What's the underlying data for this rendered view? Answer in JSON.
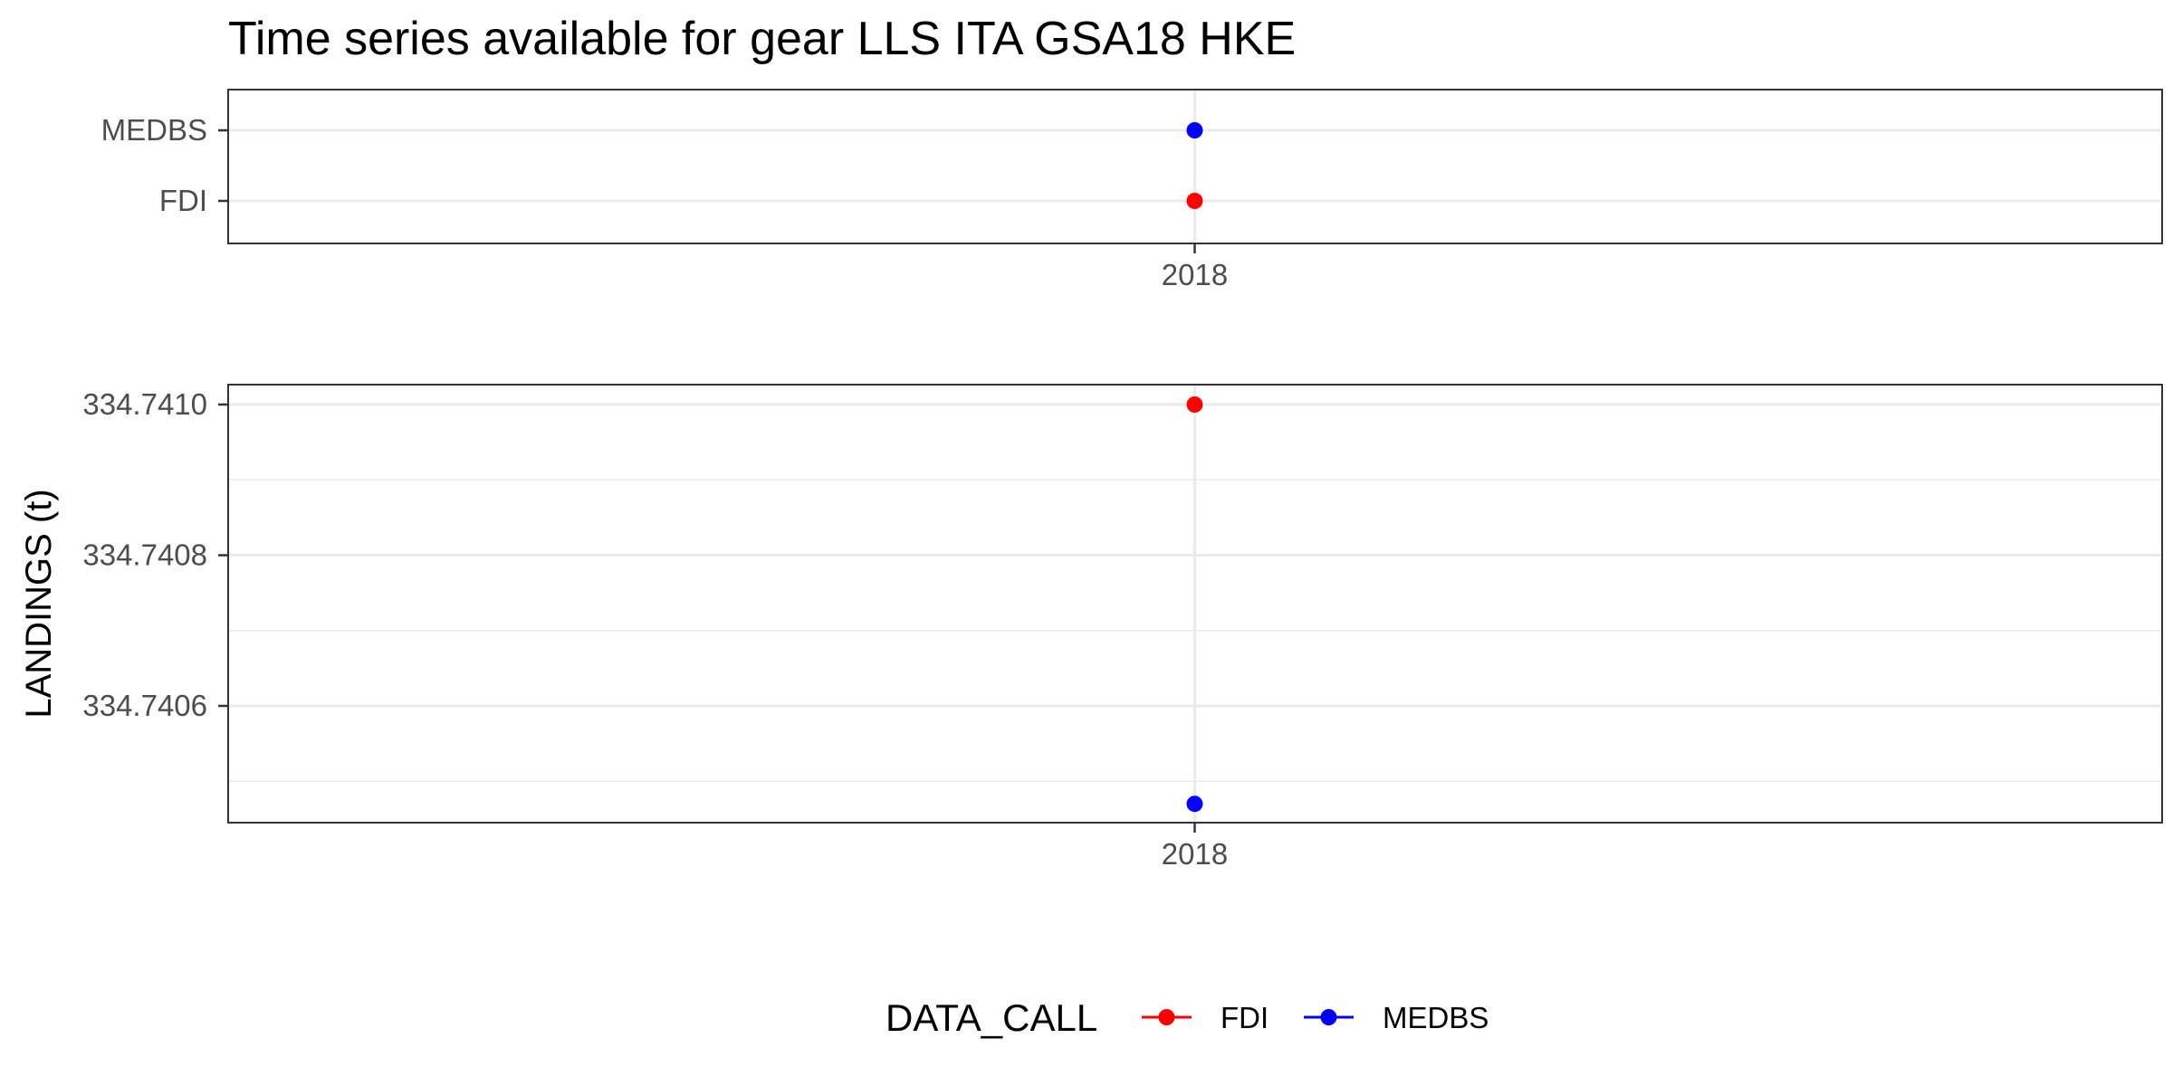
{
  "chart_data": {
    "title": "Time series available for gear LLS ITA GSA18 HKE",
    "panels": [
      {
        "type": "scatter",
        "x_ticks": [
          "2018"
        ],
        "y_categories": [
          "FDI",
          "MEDBS"
        ],
        "series": [
          {
            "name": "FDI",
            "x": 2018,
            "y": "FDI"
          },
          {
            "name": "MEDBS",
            "x": 2018,
            "y": "MEDBS"
          }
        ],
        "ylabel": "",
        "grid": true
      },
      {
        "type": "line",
        "x_ticks": [
          "2018"
        ],
        "y_ticks": [
          "334.7406",
          "334.7408",
          "334.7410"
        ],
        "ylim": [
          334.74045,
          334.74101
        ],
        "ylabel": "LANDINGS (t)",
        "series": [
          {
            "name": "FDI",
            "x": [
              2018
            ],
            "y": [
              334.741
            ]
          },
          {
            "name": "MEDBS",
            "x": [
              2018
            ],
            "y": [
              334.74047
            ]
          }
        ],
        "grid": true
      }
    ],
    "legend": {
      "title": "DATA_CALL",
      "position": "bottom",
      "items": [
        "FDI",
        "MEDBS"
      ]
    },
    "colors": {
      "FDI": "#ff0000",
      "MEDBS": "#0000ff"
    }
  }
}
